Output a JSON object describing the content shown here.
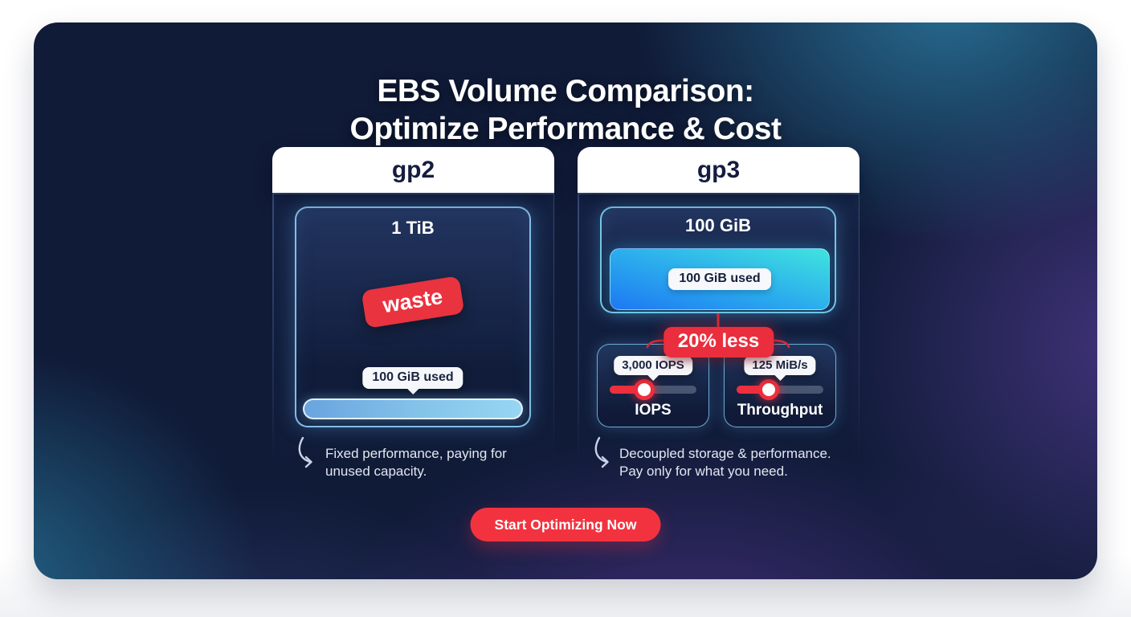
{
  "title": {
    "line1": "EBS Volume Comparison:",
    "line2": "Optimize Performance & Cost"
  },
  "columns": {
    "gp2": {
      "header": "gp2",
      "capacity": "1 TiB",
      "waste_badge": "waste",
      "used_tooltip": "100 GiB used",
      "note_line1": "Fixed performance, paying for",
      "note_line2": "unused capacity."
    },
    "gp3": {
      "header": "gp3",
      "capacity": "100 GiB",
      "used_label": "100 GiB used",
      "savings_badge": "20% less",
      "iops": {
        "tooltip": "3,000 IOPS",
        "label": "IOPS",
        "value_pct": 40
      },
      "throughput": {
        "tooltip": "125 MiB/s",
        "label": "Throughput",
        "value_pct": 37
      },
      "note_line1": "Decoupled storage & performance.",
      "note_line2": "Pay only for what you need."
    }
  },
  "cta": {
    "label": "Start Optimizing Now"
  },
  "icons": {
    "note_arrow": "curved-arrow-down-right"
  },
  "colors": {
    "card_navy": "#101B38",
    "teal_glow": "#2B7AA0",
    "purple_glow": "#6846AF",
    "accent_red": "#EE2F3E",
    "fill_cyan": "#40E4DE",
    "fill_blue": "#1E78F2",
    "bar_blue_light": "#97D6F2",
    "bar_blue": "#69A4DF",
    "header_white": "#FFFFFF",
    "header_text_navy": "#151C40"
  }
}
